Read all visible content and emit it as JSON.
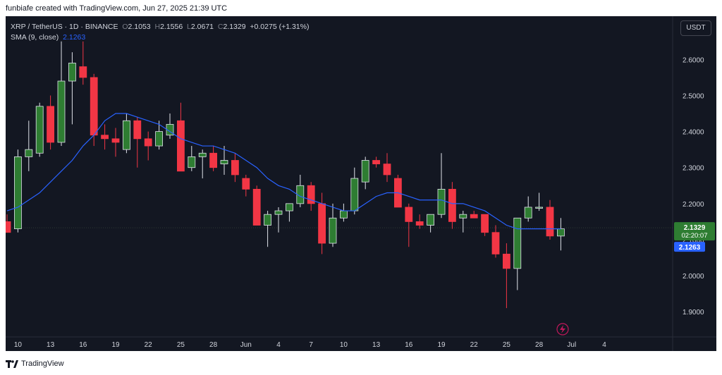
{
  "caption": "funbiafe created with TradingView.com, Jun 27, 2025 21:39 UTC",
  "legend": {
    "symbol": "XRP / TetherUS · 1D · BINANCE",
    "o_label": "O",
    "o": "2.1053",
    "h_label": "H",
    "h": "2.1556",
    "l_label": "L",
    "l": "2.0671",
    "c_label": "C",
    "c": "2.1329",
    "change": "+0.0275 (+1.31%)",
    "sma_label": "SMA (9, close)",
    "sma_value": "2.1263"
  },
  "currency_button": "USDT",
  "brand": "TradingView",
  "colors": {
    "up": "#26a69a",
    "up_fill": "#2e7d32",
    "down": "#f23645",
    "sma": "#2962ff",
    "bg": "#131722",
    "text": "#d1d4dc"
  },
  "chart_data": {
    "type": "candlestick",
    "y_axis": {
      "ticks": [
        "2.6000",
        "2.5000",
        "2.4000",
        "2.3000",
        "2.2000",
        "2.1000",
        "2.0000",
        "1.9000"
      ],
      "range": [
        1.83,
        2.72
      ]
    },
    "x_ticks": [
      "10",
      "13",
      "16",
      "19",
      "22",
      "25",
      "28",
      "Jun",
      "4",
      "7",
      "10",
      "13",
      "16",
      "19",
      "22",
      "25",
      "28",
      "Jul",
      "4"
    ],
    "price_label": {
      "price": "2.1329",
      "countdown": "02:20:07"
    },
    "sma_label": "2.1263",
    "candles": [
      {
        "o": 2.15,
        "h": 2.17,
        "l": 2.12,
        "c": 2.12
      },
      {
        "o": 2.13,
        "h": 2.35,
        "l": 2.12,
        "c": 2.33
      },
      {
        "o": 2.33,
        "h": 2.43,
        "l": 2.29,
        "c": 2.35
      },
      {
        "o": 2.34,
        "h": 2.48,
        "l": 2.33,
        "c": 2.47
      },
      {
        "o": 2.47,
        "h": 2.5,
        "l": 2.35,
        "c": 2.37
      },
      {
        "o": 2.37,
        "h": 2.65,
        "l": 2.36,
        "c": 2.54
      },
      {
        "o": 2.54,
        "h": 2.62,
        "l": 2.42,
        "c": 2.59
      },
      {
        "o": 2.58,
        "h": 2.65,
        "l": 2.53,
        "c": 2.55
      },
      {
        "o": 2.55,
        "h": 2.56,
        "l": 2.36,
        "c": 2.39
      },
      {
        "o": 2.39,
        "h": 2.42,
        "l": 2.35,
        "c": 2.38
      },
      {
        "o": 2.38,
        "h": 2.41,
        "l": 2.33,
        "c": 2.37
      },
      {
        "o": 2.35,
        "h": 2.45,
        "l": 2.34,
        "c": 2.43
      },
      {
        "o": 2.43,
        "h": 2.44,
        "l": 2.3,
        "c": 2.38
      },
      {
        "o": 2.38,
        "h": 2.4,
        "l": 2.32,
        "c": 2.36
      },
      {
        "o": 2.36,
        "h": 2.43,
        "l": 2.35,
        "c": 2.4
      },
      {
        "o": 2.39,
        "h": 2.45,
        "l": 2.38,
        "c": 2.42
      },
      {
        "o": 2.43,
        "h": 2.48,
        "l": 2.29,
        "c": 2.29
      },
      {
        "o": 2.3,
        "h": 2.36,
        "l": 2.29,
        "c": 2.33
      },
      {
        "o": 2.33,
        "h": 2.35,
        "l": 2.27,
        "c": 2.34
      },
      {
        "o": 2.34,
        "h": 2.36,
        "l": 2.29,
        "c": 2.3
      },
      {
        "o": 2.31,
        "h": 2.36,
        "l": 2.28,
        "c": 2.32
      },
      {
        "o": 2.32,
        "h": 2.34,
        "l": 2.26,
        "c": 2.28
      },
      {
        "o": 2.27,
        "h": 2.28,
        "l": 2.22,
        "c": 2.24
      },
      {
        "o": 2.24,
        "h": 2.25,
        "l": 2.14,
        "c": 2.14
      },
      {
        "o": 2.14,
        "h": 2.18,
        "l": 2.08,
        "c": 2.17
      },
      {
        "o": 2.17,
        "h": 2.19,
        "l": 2.12,
        "c": 2.18
      },
      {
        "o": 2.18,
        "h": 2.2,
        "l": 2.15,
        "c": 2.2
      },
      {
        "o": 2.2,
        "h": 2.28,
        "l": 2.19,
        "c": 2.25
      },
      {
        "o": 2.25,
        "h": 2.26,
        "l": 2.18,
        "c": 2.2
      },
      {
        "o": 2.2,
        "h": 2.23,
        "l": 2.06,
        "c": 2.09
      },
      {
        "o": 2.09,
        "h": 2.2,
        "l": 2.08,
        "c": 2.16
      },
      {
        "o": 2.16,
        "h": 2.2,
        "l": 2.15,
        "c": 2.18
      },
      {
        "o": 2.18,
        "h": 2.3,
        "l": 2.17,
        "c": 2.27
      },
      {
        "o": 2.26,
        "h": 2.33,
        "l": 2.24,
        "c": 2.32
      },
      {
        "o": 2.32,
        "h": 2.33,
        "l": 2.3,
        "c": 2.31
      },
      {
        "o": 2.31,
        "h": 2.34,
        "l": 2.26,
        "c": 2.28
      },
      {
        "o": 2.27,
        "h": 2.28,
        "l": 2.19,
        "c": 2.19
      },
      {
        "o": 2.19,
        "h": 2.2,
        "l": 2.08,
        "c": 2.15
      },
      {
        "o": 2.15,
        "h": 2.17,
        "l": 2.13,
        "c": 2.14
      },
      {
        "o": 2.14,
        "h": 2.17,
        "l": 2.12,
        "c": 2.17
      },
      {
        "o": 2.17,
        "h": 2.34,
        "l": 2.16,
        "c": 2.24
      },
      {
        "o": 2.24,
        "h": 2.26,
        "l": 2.13,
        "c": 2.15
      },
      {
        "o": 2.16,
        "h": 2.18,
        "l": 2.12,
        "c": 2.17
      },
      {
        "o": 2.17,
        "h": 2.18,
        "l": 2.16,
        "c": 2.16
      },
      {
        "o": 2.17,
        "h": 2.17,
        "l": 2.11,
        "c": 2.12
      },
      {
        "o": 2.12,
        "h": 2.14,
        "l": 2.05,
        "c": 2.06
      },
      {
        "o": 2.06,
        "h": 2.09,
        "l": 1.91,
        "c": 2.02
      },
      {
        "o": 2.02,
        "h": 2.16,
        "l": 1.96,
        "c": 2.16
      },
      {
        "o": 2.16,
        "h": 2.22,
        "l": 2.15,
        "c": 2.19
      },
      {
        "o": 2.19,
        "h": 2.23,
        "l": 2.18,
        "c": 2.19
      },
      {
        "o": 2.19,
        "h": 2.21,
        "l": 2.1,
        "c": 2.11
      },
      {
        "o": 2.11,
        "h": 2.16,
        "l": 2.07,
        "c": 2.13
      }
    ],
    "sma": [
      2.18,
      2.19,
      2.21,
      2.23,
      2.26,
      2.29,
      2.32,
      2.36,
      2.39,
      2.43,
      2.45,
      2.45,
      2.44,
      2.43,
      2.42,
      2.4,
      2.38,
      2.37,
      2.36,
      2.36,
      2.35,
      2.34,
      2.32,
      2.3,
      2.27,
      2.25,
      2.24,
      2.22,
      2.21,
      2.2,
      2.19,
      2.18,
      2.18,
      2.2,
      2.22,
      2.23,
      2.23,
      2.22,
      2.21,
      2.21,
      2.21,
      2.2,
      2.2,
      2.19,
      2.18,
      2.16,
      2.14,
      2.13,
      2.13,
      2.13,
      2.13,
      2.13
    ]
  }
}
